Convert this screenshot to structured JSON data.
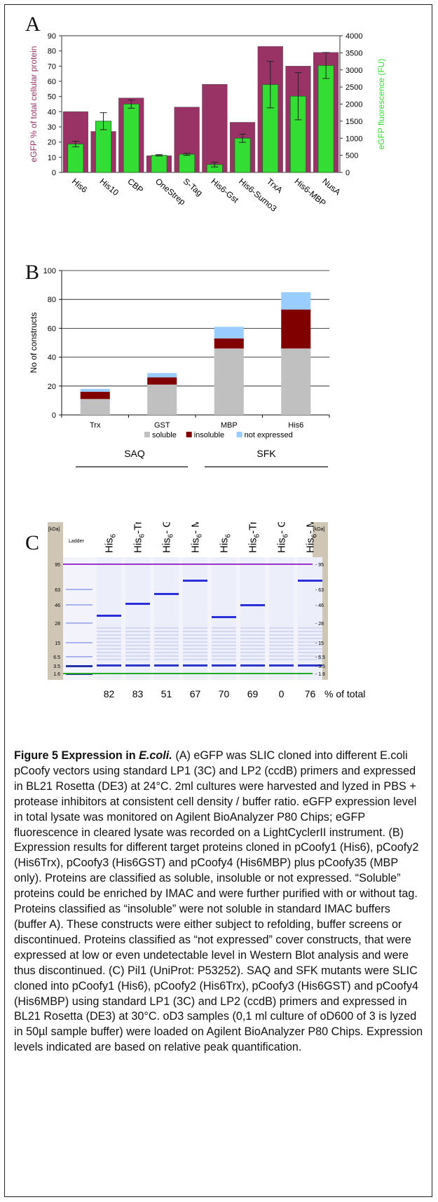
{
  "panel_a": {
    "letter": "A",
    "chart_data": {
      "type": "bar",
      "categories": [
        "His6",
        "His10",
        "CBP",
        "OneStrep",
        "S-Tag",
        "His6-Gst",
        "His6-Sumo3",
        "TrxA",
        "His6-MBP",
        "NusA"
      ],
      "series": [
        {
          "name": "eGFP % of total cellular protein",
          "color": "#993366",
          "axis": "left",
          "values": [
            40,
            27,
            49,
            11,
            43,
            58,
            33,
            83,
            70,
            79
          ]
        },
        {
          "name": "eGFP fluorescence (FU)",
          "color": "#33dd33",
          "axis": "right",
          "values": [
            830,
            1500,
            2000,
            500,
            530,
            230,
            1000,
            2570,
            2230,
            3130
          ],
          "errors": [
            80,
            250,
            120,
            20,
            30,
            70,
            120,
            680,
            690,
            380
          ]
        }
      ],
      "ylabel": "eGFP % of total cellular protein",
      "y2label": "eGFP fluorescence (FU)",
      "ylim": [
        0,
        90
      ],
      "yticks": [
        0,
        10,
        20,
        30,
        40,
        50,
        60,
        70,
        80,
        90
      ],
      "y2lim": [
        0,
        4000
      ],
      "y2ticks": [
        0,
        500,
        1000,
        1500,
        2000,
        2500,
        3000,
        3500,
        4000
      ]
    }
  },
  "panel_b": {
    "letter": "B",
    "chart_data": {
      "type": "bar",
      "stacked": true,
      "categories": [
        "Trx",
        "GST",
        "MBP",
        "His6"
      ],
      "series": [
        {
          "name": "soluble",
          "color": "#c0c0c0",
          "values": [
            11,
            21,
            46,
            46
          ]
        },
        {
          "name": "insoluble",
          "color": "#800000",
          "values": [
            5,
            5,
            7,
            27
          ]
        },
        {
          "name": "not expressed",
          "color": "#99ccff",
          "values": [
            2,
            3,
            8,
            12
          ]
        }
      ],
      "ylabel": "No of constructs",
      "ylim": [
        0,
        100
      ],
      "yticks": [
        0,
        20,
        40,
        60,
        80,
        100
      ],
      "grid": true,
      "legend": "bottom"
    },
    "groups": [
      "SAQ",
      "SFK"
    ]
  },
  "panel_c": {
    "letter": "C",
    "kda_label": "[kDa]",
    "ladder_label": "Ladder",
    "markers": [
      "95",
      "63",
      "46",
      "28",
      "15",
      "6.5",
      "3.5",
      "1.6"
    ],
    "lanes": [
      {
        "base": "His",
        "sub": "6",
        "suffix": ""
      },
      {
        "base": "His",
        "sub": "6",
        "suffix": "-Trx"
      },
      {
        "base": "His",
        "sub": "6",
        "suffix": "- GST"
      },
      {
        "base": "His",
        "sub": "6",
        "suffix": "- MBP"
      },
      {
        "base": "His",
        "sub": "6",
        "suffix": ""
      },
      {
        "base": "His",
        "sub": "6",
        "suffix": "-Trx"
      },
      {
        "base": "His",
        "sub": "6",
        "suffix": "- GST"
      },
      {
        "base": "His",
        "sub": "6",
        "suffix": "- MBP"
      }
    ],
    "percentages": [
      "82",
      "83",
      "51",
      "67",
      "70",
      "69",
      "0",
      "76"
    ],
    "percent_label": "% of total"
  },
  "caption": {
    "title": "Figure 5 Expression in E.coli.",
    "p1": "(A) eGFP was SLIC cloned into different E.coli pCoofy vectors using standard LP1 (3C) and LP2 (ccdB) primers and expressed in BL21 Rosetta (DE3) at 24°C. 2ml cultures were harvested and lyzed in PBS + protease inhibitors at consistent cell density / buffer ratio. eGFP expression level in total lysate was monitored on Agilent BioAnalyzer P80 Chips; eGFP fluorescence in cleared lysate was recorded on a LightCyclerII instrument.",
    "p2": "(B) Expression results for different target proteins cloned in pCoofy1 (His6), pCoofy2 (His6Trx), pCoofy3 (His6GST) and pCoofy4 (His6MBP) plus pCoofy35 (MBP only). Proteins are classified as soluble, insoluble or not expressed. “Soluble” proteins could be enriched by IMAC and were further purified with or without tag. Proteins classified as “insoluble” were not soluble in standard IMAC buffers (buffer A). These constructs were either subject to refolding, buffer screens or discontinued. Proteins classified as “not expressed” cover constructs, that were expressed at low or even undetectable level in Western Blot analysis and were thus discontinued.",
    "p3": "(C) Pil1 (UniProt: P53252). SAQ and SFK mutants were SLIC cloned into pCoofy1 (His6), pCoofy2 (His6Trx), pCoofy3 (His6GST) and pCoofy4 (His6MBP) using standard LP1 (3C) and LP2 (ccdB) primers and expressed in BL21 Rosetta (DE3) at 30°C. oD3 samples (0,1 ml culture of oD600 of 3 is lyzed in 50µl sample buffer) were loaded on Agilent BioAnalyzer P80 Chips. Expression levels indicated are based on relative peak quantification."
  }
}
